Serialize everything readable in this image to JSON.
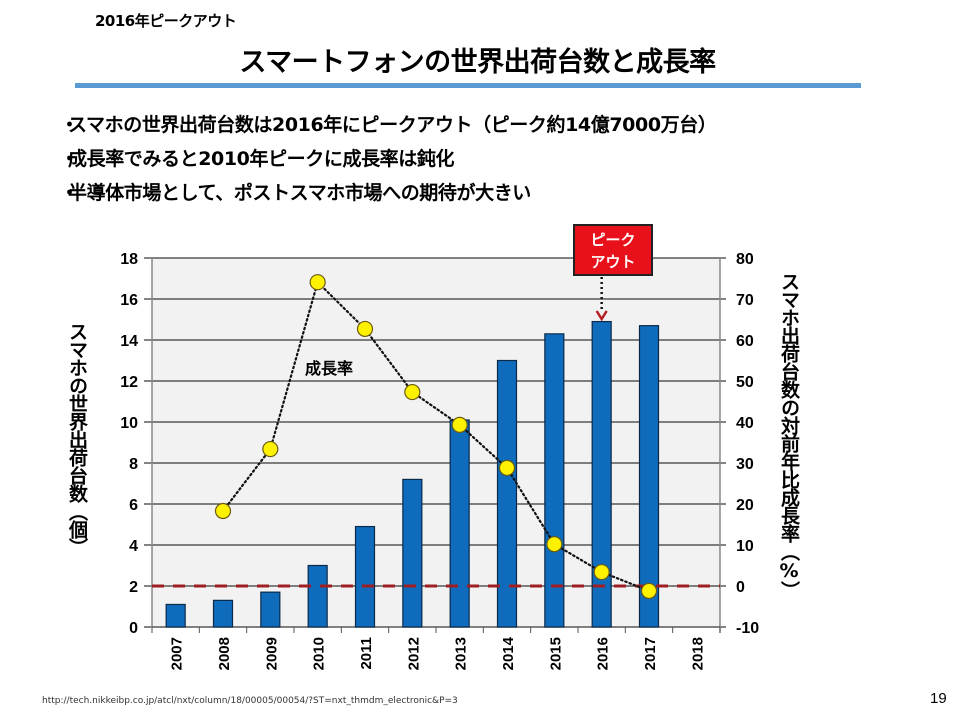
{
  "slide": {
    "subtitle": "2016年ピークアウト",
    "title": "スマートフォンの世界出荷台数と成長率",
    "bullets": [
      "スマホの世界出荷台数は2016年にピークアウト（ピーク約14億7000万台）",
      "成長率でみると2010年ピークに成長率は鈍化",
      "半導体市場として、ポストスマホ市場への期待が大きい"
    ],
    "bullet_marker": "・",
    "source": "http://tech.nikkeibp.co.jp/atcl/nxt/column/18/00005/00054/?ST=nxt_thmdm_electronic&P=3",
    "page_number": "19",
    "accent_color": "#5B9BD5"
  },
  "chart_data": {
    "type": "bar",
    "title": "",
    "categories": [
      "2007",
      "2008",
      "2009",
      "2010",
      "2011",
      "2012",
      "2013",
      "2014",
      "2015",
      "2016",
      "2017",
      "2018"
    ],
    "series": [
      {
        "name": "スマホの世界出荷台数",
        "type": "bar",
        "axis": "left",
        "color": "#0F6CBD",
        "values": [
          1.1,
          1.3,
          1.7,
          3.0,
          4.9,
          7.2,
          10.1,
          13.0,
          14.3,
          14.9,
          14.7,
          null
        ]
      },
      {
        "name": "成長率",
        "type": "line",
        "axis": "right",
        "color": "#FFF200",
        "line_style": "dotted",
        "values": [
          null,
          18.3,
          33.4,
          74.1,
          62.7,
          47.3,
          39.3,
          28.8,
          10.2,
          3.4,
          -1.2,
          null
        ]
      }
    ],
    "ylabel": "スマホの世界出荷台数（個）",
    "ylabel_right": "スマホ出荷台数の対前年比成長率（%）",
    "ylim": [
      0,
      18
    ],
    "yticks": [
      0,
      2,
      4,
      6,
      8,
      10,
      12,
      14,
      16,
      18
    ],
    "ylim_right": [
      -10,
      80
    ],
    "yticks_right": [
      -10,
      0,
      10,
      20,
      30,
      40,
      50,
      60,
      70,
      80
    ],
    "reference_line": {
      "axis": "right",
      "value": 0,
      "style": "dashed",
      "color": "#A01E22"
    },
    "grid": true,
    "annotations": [
      {
        "text": "成長率",
        "target": "line-series"
      },
      {
        "text_lines": [
          "ピーク",
          "アウト"
        ],
        "target_category": "2016",
        "color": "#E8101A"
      }
    ],
    "legend": "none"
  }
}
